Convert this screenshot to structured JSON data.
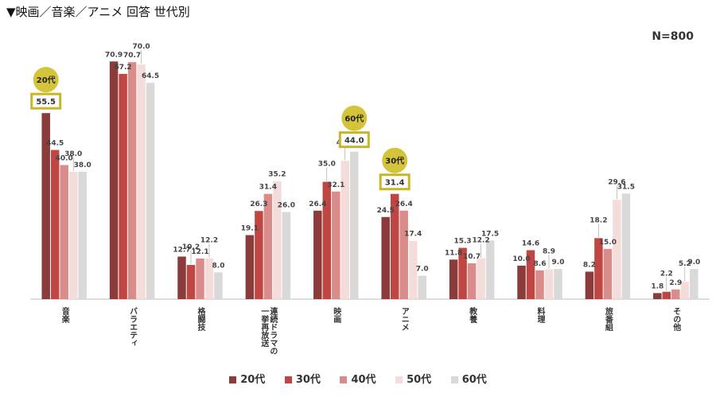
{
  "header": {
    "title": "▼映画／音楽／アニメ 回答 世代別",
    "n_label": "N=800"
  },
  "colors": {
    "20代": "#8a3b3a",
    "30代": "#c04643",
    "40代": "#d98c89",
    "50代": "#f4dcdb",
    "60代": "#d9d9d9",
    "callout_border": "#c8b62a",
    "callout_badge": "#d4c43a"
  },
  "chart_data": {
    "type": "bar",
    "categories": [
      "音楽",
      "バラエティ",
      "格闘技",
      "連続ドラマの一挙再放送",
      "映画",
      "アニメ",
      "教養",
      "料理",
      "旅番組",
      "その他"
    ],
    "category_lines": [
      [
        "音楽"
      ],
      [
        "バラエティ"
      ],
      [
        "格闘技"
      ],
      [
        "連続ドラマの",
        "一挙再放送"
      ],
      [
        "映画"
      ],
      [
        "アニメ"
      ],
      [
        "教養"
      ],
      [
        "料理"
      ],
      [
        "旅番組"
      ],
      [
        "その他"
      ]
    ],
    "series": [
      {
        "name": "20代",
        "values": [
          55.5,
          70.9,
          12.7,
          19.1,
          26.4,
          24.5,
          11.8,
          10.0,
          8.2,
          1.8
        ]
      },
      {
        "name": "30代",
        "values": [
          44.5,
          67.2,
          10.2,
          26.3,
          35.0,
          31.4,
          15.3,
          14.6,
          18.2,
          2.2
        ]
      },
      {
        "name": "40代",
        "values": [
          40.0,
          70.7,
          12.1,
          31.4,
          32.1,
          26.4,
          10.7,
          8.6,
          15.0,
          2.9
        ]
      },
      {
        "name": "50代",
        "values": [
          38.0,
          70.0,
          12.2,
          35.2,
          41.3,
          17.4,
          12.2,
          8.9,
          29.6,
          5.2
        ]
      },
      {
        "name": "60代",
        "values": [
          38.0,
          64.5,
          8.0,
          26.0,
          44.0,
          7.0,
          17.5,
          9.0,
          31.5,
          9.0
        ]
      }
    ],
    "ylim": [
      0,
      75
    ],
    "grid": false,
    "legend_position": "bottom",
    "callouts": [
      {
        "series": "20代",
        "category": "音楽",
        "badge": "20代",
        "value": "55.5"
      },
      {
        "series": "60代",
        "category": "映画",
        "badge": "60代",
        "value": "44.0"
      },
      {
        "series": "30代",
        "category": "アニメ",
        "badge": "30代",
        "value": "31.4"
      }
    ]
  }
}
